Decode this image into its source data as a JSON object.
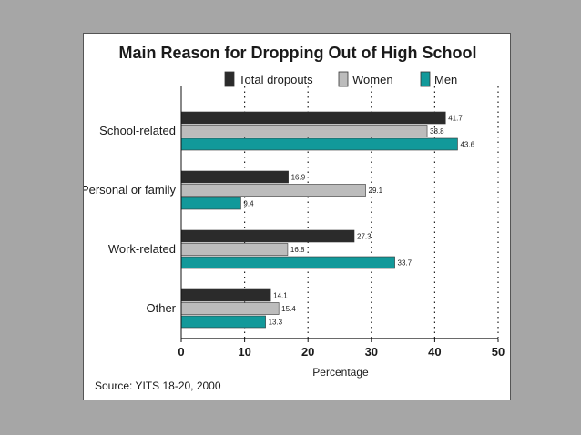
{
  "colors": {
    "background": "#a6a6a6",
    "panel": "#ffffff",
    "total": "#2b2b2b",
    "women": "#bcbcbc",
    "men": "#12999a"
  },
  "source": "Source: YITS 18-20, 2000",
  "chart_data": {
    "type": "bar",
    "orientation": "horizontal",
    "title": "Main Reason for Dropping Out of High School",
    "xlabel": "Percentage",
    "ylabel": "",
    "xlim": [
      0,
      50
    ],
    "xticks": [
      0,
      10,
      20,
      30,
      40,
      50
    ],
    "grid": "vertical dotted",
    "legend_position": "top",
    "categories": [
      "School-related",
      "Personal or family",
      "Work-related",
      "Other"
    ],
    "series": [
      {
        "name": "Total dropouts",
        "color": "#2b2b2b",
        "values": [
          41.7,
          16.9,
          27.3,
          14.1
        ]
      },
      {
        "name": "Women",
        "color": "#bcbcbc",
        "values": [
          38.8,
          29.1,
          16.8,
          15.4
        ]
      },
      {
        "name": "Men",
        "color": "#12999a",
        "values": [
          43.6,
          9.4,
          33.7,
          13.3
        ]
      }
    ],
    "data_labels": [
      [
        "41.7",
        "38.8",
        "43.6"
      ],
      [
        "16.9",
        "29.1",
        "9.4"
      ],
      [
        "27.3",
        "16.8",
        "33.7"
      ],
      [
        "14.1",
        "15.4",
        "13.3"
      ]
    ]
  }
}
